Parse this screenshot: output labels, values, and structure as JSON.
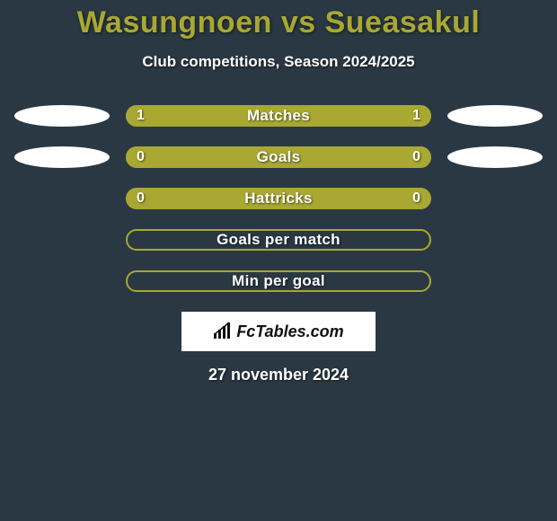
{
  "title": {
    "text": "Wasungnoen vs Sueasakul",
    "color": "#a8a832",
    "fontsize": 34
  },
  "subtitle": "Club competitions, Season 2024/2025",
  "background_color": "#2a3844",
  "player_left_color": "#a8a832",
  "player_right_color": "#a8a832",
  "bar_track_color": "#a8a832",
  "bar_border_color": "#a8a832",
  "ellipse_left_color": "#ffffff",
  "ellipse_right_color": "#ffffff",
  "rows": [
    {
      "label": "Matches",
      "left": "1",
      "right": "1",
      "left_pct": 50,
      "right_pct": 50,
      "show_values": true,
      "show_ellipses": true
    },
    {
      "label": "Goals",
      "left": "0",
      "right": "0",
      "left_pct": 50,
      "right_pct": 50,
      "show_values": true,
      "show_ellipses": true
    },
    {
      "label": "Hattricks",
      "left": "0",
      "right": "0",
      "left_pct": 50,
      "right_pct": 50,
      "show_values": true,
      "show_ellipses": false
    },
    {
      "label": "Goals per match",
      "left": "",
      "right": "",
      "left_pct": 0,
      "right_pct": 0,
      "show_values": false,
      "show_ellipses": false
    },
    {
      "label": "Min per goal",
      "left": "",
      "right": "",
      "left_pct": 0,
      "right_pct": 0,
      "show_values": false,
      "show_ellipses": false
    }
  ],
  "brand": "FcTables.com",
  "date": "27 november 2024"
}
